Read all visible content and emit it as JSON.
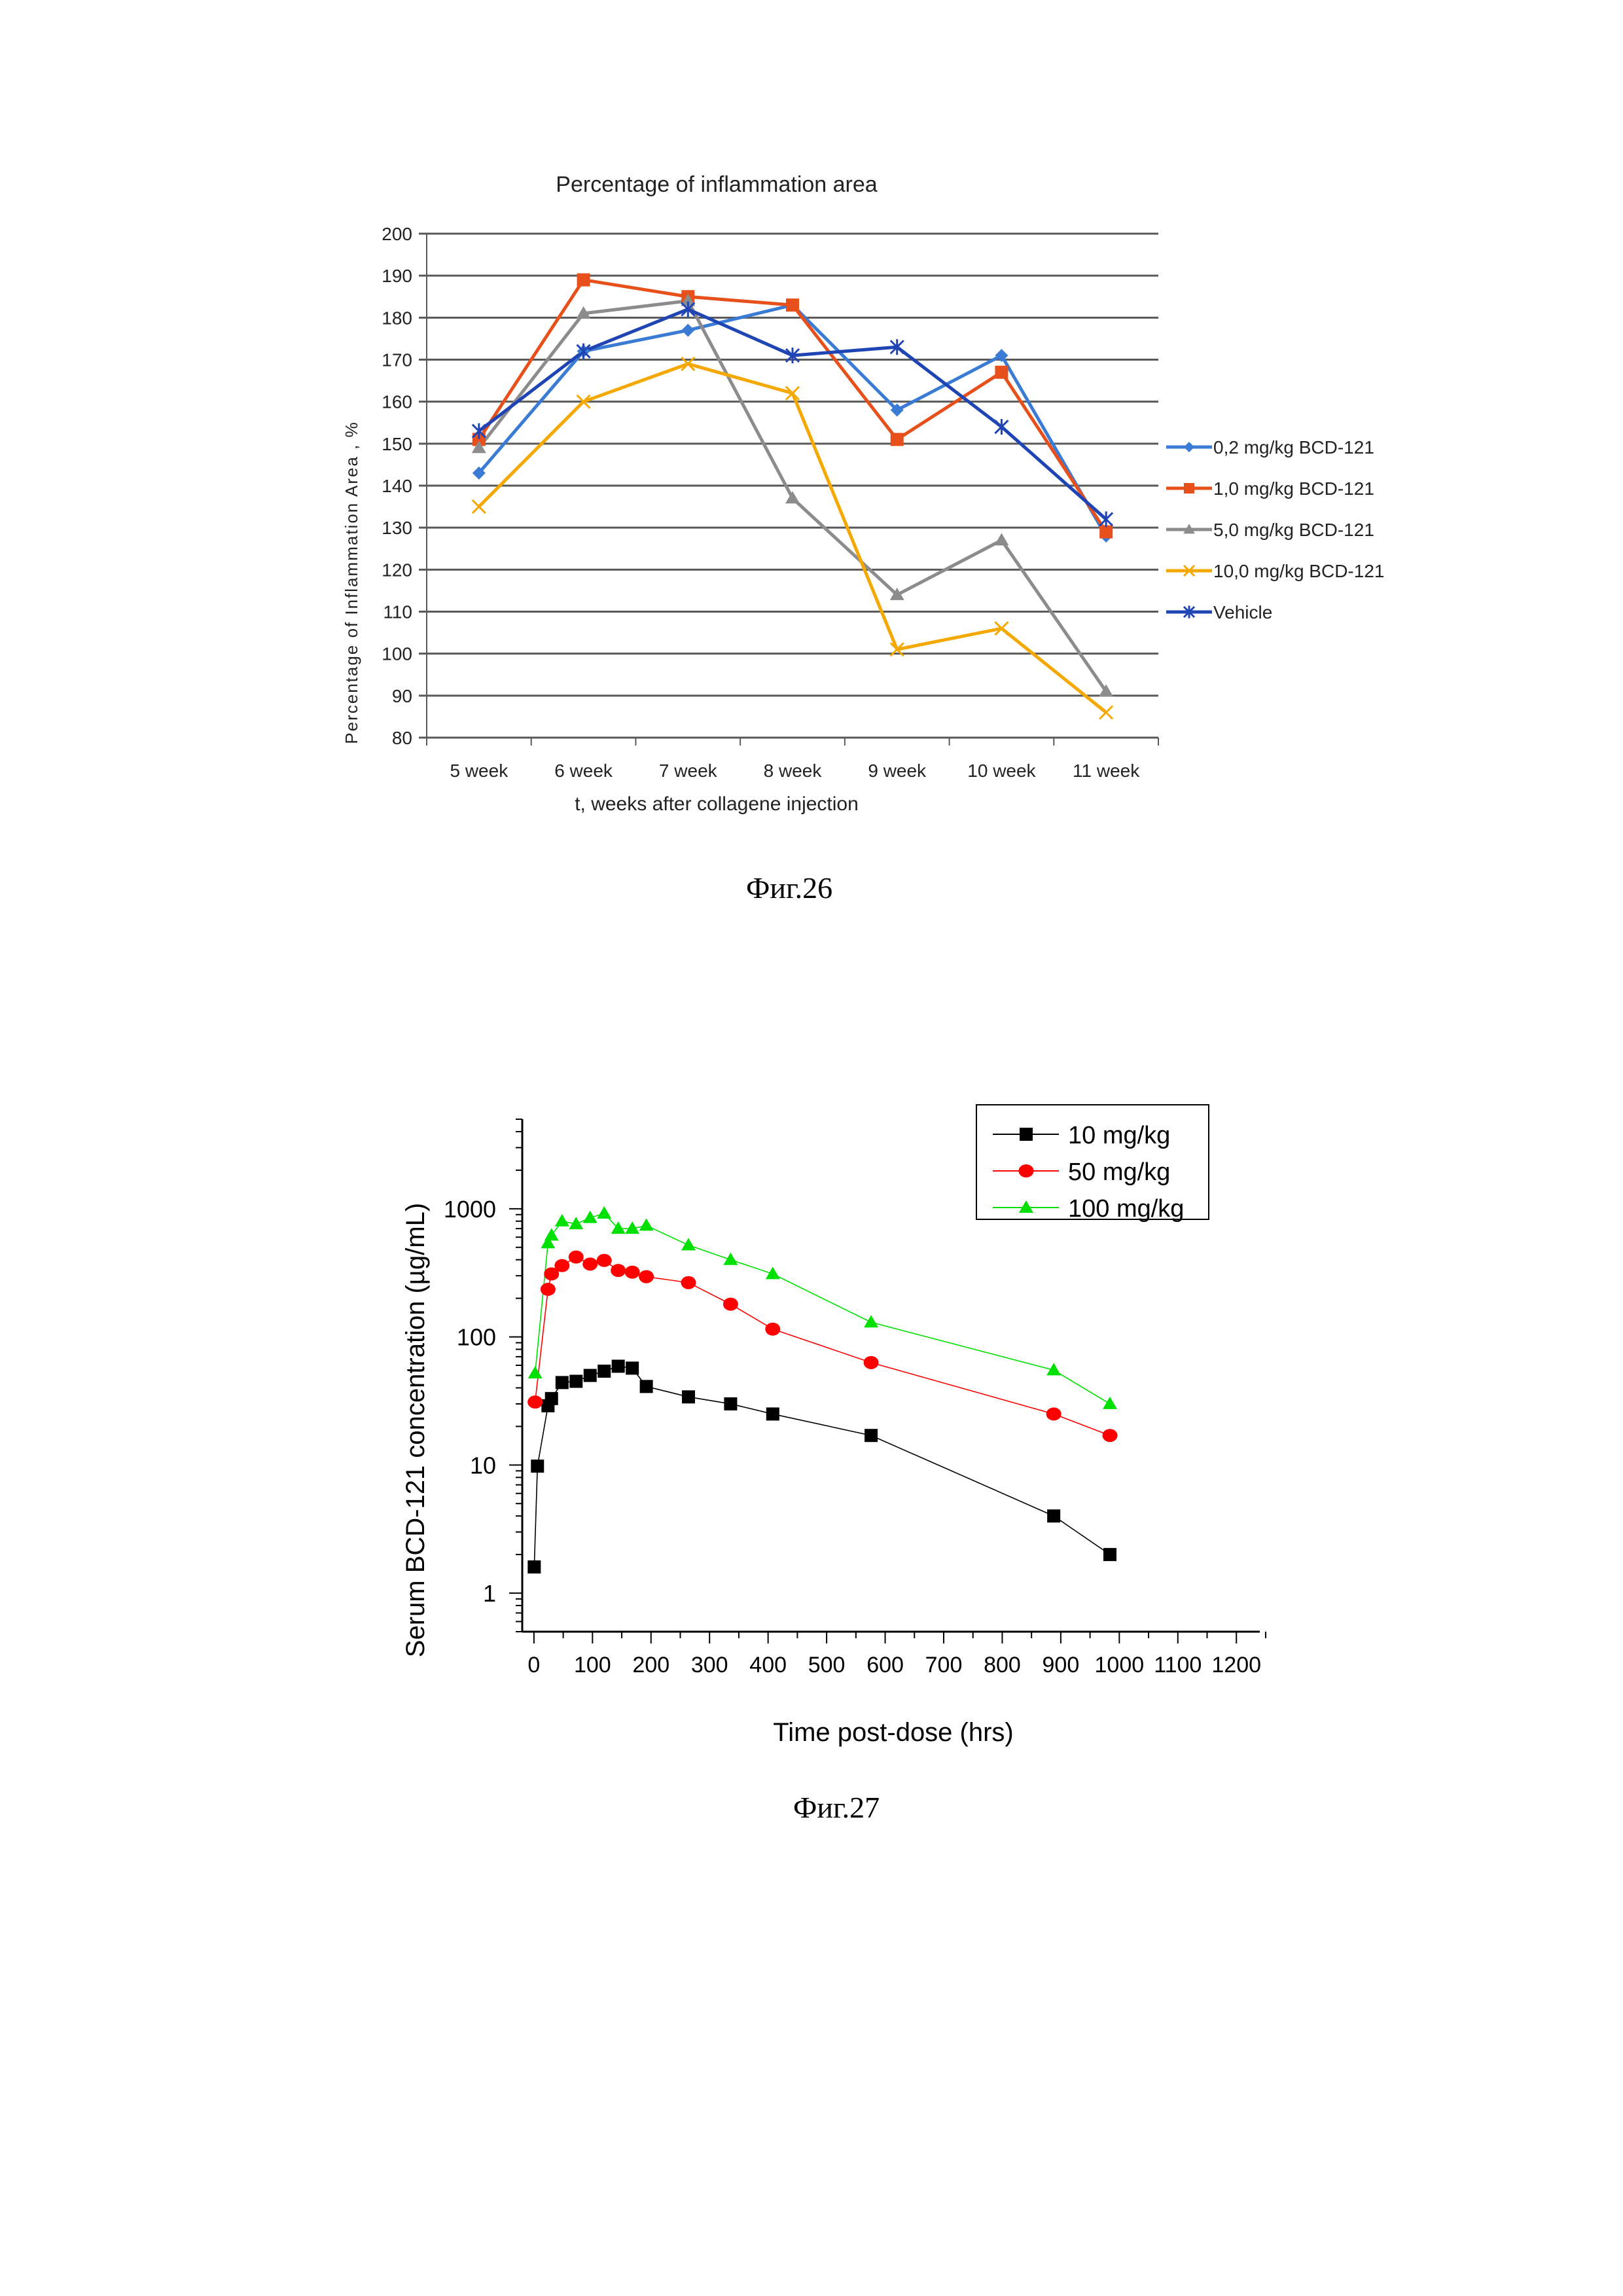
{
  "captions": {
    "fig26": "Фиг.26",
    "fig27": "Фиг.27"
  },
  "chart_data": [
    {
      "type": "line",
      "title": "Percentage of inflammation area",
      "xlabel": "t, weeks after collagene injection",
      "ylabel": "Percentage of Inflammation Area , %",
      "categories": [
        "5 week",
        "6 week",
        "7 week",
        "8 week",
        "9 week",
        "10 week",
        "11 week"
      ],
      "ylim": [
        80,
        200
      ],
      "yticks": [
        80,
        90,
        100,
        110,
        120,
        130,
        140,
        150,
        160,
        170,
        180,
        190,
        200
      ],
      "grid": true,
      "legend": "right",
      "series": [
        {
          "name": "0,2 mg/kg BCD-121",
          "color": "#3a7bd5",
          "marker": "diamond",
          "values": [
            143,
            172,
            177,
            183,
            158,
            171,
            128
          ]
        },
        {
          "name": "1,0 mg/kg BCD-121",
          "color": "#e8501b",
          "marker": "square",
          "values": [
            151,
            189,
            185,
            183,
            151,
            167,
            129
          ]
        },
        {
          "name": "5,0 mg/kg BCD-121",
          "color": "#8c8c8c",
          "marker": "triangle",
          "values": [
            149,
            181,
            184,
            137,
            114,
            127,
            91
          ]
        },
        {
          "name": "10,0 mg/kg BCD-121",
          "color": "#f5a800",
          "marker": "x",
          "values": [
            135,
            160,
            169,
            162,
            101,
            106,
            86
          ]
        },
        {
          "name": "Vehicle",
          "color": "#1f45b5",
          "marker": "star",
          "values": [
            153,
            172,
            182,
            171,
            173,
            154,
            132
          ]
        }
      ]
    },
    {
      "type": "line",
      "title": "",
      "xlabel": "Time post-dose (hrs)",
      "ylabel": "Serum BCD-121 concentration (µg/mL)",
      "xlim": [
        -20,
        1240
      ],
      "xticks": [
        0,
        100,
        200,
        300,
        400,
        500,
        600,
        700,
        800,
        900,
        1000,
        1100,
        1200
      ],
      "yscale": "log",
      "ylim": [
        0.5,
        5000
      ],
      "yticks": [
        1,
        10,
        100,
        1000
      ],
      "grid": false,
      "legend": "top-right",
      "series": [
        {
          "name": "10 mg/kg",
          "color": "#000000",
          "marker": "square",
          "x": [
            0.5,
            6,
            24,
            30,
            48,
            72,
            96,
            120,
            144,
            168,
            192,
            264,
            336,
            408,
            576,
            888,
            984
          ],
          "y": [
            1.6,
            9.8,
            29,
            33,
            44,
            45,
            50,
            54,
            59,
            57,
            41,
            34,
            30,
            25,
            17,
            4.0,
            2.0
          ]
        },
        {
          "name": "50 mg/kg",
          "color": "#ff0000",
          "marker": "circle",
          "x": [
            2,
            24,
            30,
            48,
            72,
            96,
            120,
            144,
            168,
            192,
            264,
            336,
            408,
            576,
            888,
            984
          ],
          "y": [
            31,
            235,
            310,
            360,
            420,
            370,
            395,
            330,
            320,
            295,
            265,
            180,
            115,
            63,
            25,
            17
          ]
        },
        {
          "name": "100 mg/kg",
          "color": "#00e000",
          "marker": "triangle",
          "x": [
            2,
            24,
            30,
            48,
            72,
            96,
            120,
            144,
            168,
            192,
            264,
            336,
            408,
            576,
            888,
            984
          ],
          "y": [
            52,
            540,
            620,
            800,
            760,
            850,
            920,
            700,
            700,
            740,
            520,
            400,
            310,
            130,
            55,
            30
          ]
        }
      ]
    }
  ]
}
